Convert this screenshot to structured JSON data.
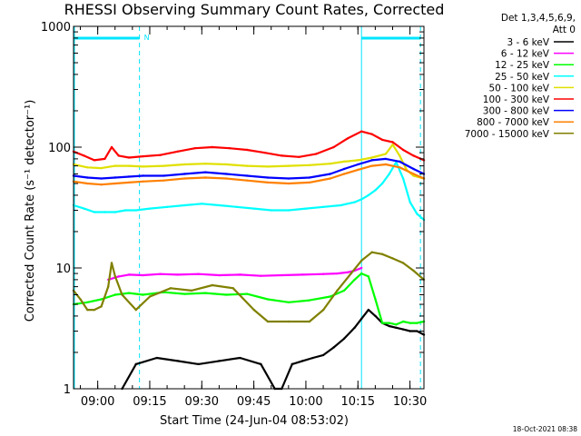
{
  "chart_data": {
    "type": "line",
    "title": "RHESSI Observing Summary Count Rates, Corrected",
    "ylabel": "Corrected Count Rate (s⁻¹ detector⁻¹)",
    "xlabel": "Start Time (24-Jun-04 08:53:02)",
    "yscale": "log",
    "ylim": [
      1,
      1000
    ],
    "xlim_minutes": [
      0,
      101
    ],
    "y_ticks": [
      {
        "value": 1,
        "label": "1"
      },
      {
        "value": 10,
        "label": "10"
      },
      {
        "value": 100,
        "label": "100"
      },
      {
        "value": 1000,
        "label": "1000"
      }
    ],
    "x_ticks": [
      {
        "t": 6.97,
        "label": "09:00"
      },
      {
        "t": 21.97,
        "label": "09:15"
      },
      {
        "t": 36.97,
        "label": "09:30"
      },
      {
        "t": 51.97,
        "label": "09:45"
      },
      {
        "t": 66.97,
        "label": "10:00"
      },
      {
        "t": 81.97,
        "label": "10:15"
      },
      {
        "t": 96.97,
        "label": "10:30"
      }
    ],
    "legend_header": [
      "Det 1,3,4,5,6,9,",
      "Att 0"
    ],
    "legend_placement": "right",
    "night_band": {
      "start": 0,
      "end": 19,
      "label": "N"
    },
    "dashed_markers": [
      19,
      100
    ],
    "solid_markers": [
      0,
      83
    ],
    "series": [
      {
        "name": "3 - 6 keV",
        "color": "#000000",
        "t": [
          14,
          18,
          24,
          30,
          36,
          42,
          48,
          54,
          58,
          60,
          63,
          66,
          69,
          72,
          75,
          78,
          81,
          83,
          85,
          87,
          89,
          91,
          93,
          95,
          97,
          99,
          101
        ],
        "v": [
          1.0,
          1.6,
          1.8,
          1.7,
          1.6,
          1.7,
          1.8,
          1.6,
          1.0,
          1.0,
          1.6,
          1.7,
          1.8,
          1.9,
          2.2,
          2.6,
          3.2,
          3.8,
          4.5,
          4.0,
          3.5,
          3.3,
          3.2,
          3.1,
          3.0,
          3.0,
          2.8
        ]
      },
      {
        "name": "6 - 12 keV",
        "color": "#ff00ff",
        "t": [
          10,
          13,
          16,
          20,
          25,
          30,
          36,
          42,
          48,
          54,
          60,
          66,
          72,
          76,
          79,
          81,
          83
        ],
        "v": [
          8.0,
          8.5,
          8.8,
          8.7,
          8.9,
          8.8,
          8.9,
          8.7,
          8.8,
          8.6,
          8.7,
          8.8,
          8.9,
          9.0,
          9.2,
          9.5,
          10.0
        ]
      },
      {
        "name": "12 - 25 keV",
        "color": "#00ff00",
        "t": [
          0,
          4,
          8,
          12,
          16,
          20,
          26,
          32,
          38,
          44,
          50,
          56,
          62,
          68,
          74,
          78,
          81,
          83,
          85,
          87,
          89,
          91,
          93,
          95,
          97,
          99,
          101
        ],
        "v": [
          5.0,
          5.2,
          5.5,
          6.0,
          6.2,
          6.0,
          6.3,
          6.1,
          6.2,
          6.0,
          6.1,
          5.5,
          5.2,
          5.4,
          5.8,
          6.5,
          8.0,
          9.0,
          8.5,
          5.5,
          3.5,
          3.5,
          3.4,
          3.6,
          3.5,
          3.5,
          3.6
        ]
      },
      {
        "name": "25 - 50 keV",
        "color": "#00ffff",
        "t": [
          0,
          3,
          6,
          9,
          12,
          15,
          18,
          22,
          27,
          32,
          37,
          42,
          47,
          52,
          57,
          62,
          67,
          72,
          77,
          81,
          83,
          85,
          87,
          89,
          91,
          93,
          95,
          97,
          99,
          101
        ],
        "v": [
          33,
          31,
          29,
          29,
          29,
          30,
          30,
          31,
          32,
          33,
          34,
          33,
          32,
          31,
          30,
          30,
          31,
          32,
          33,
          35,
          37,
          40,
          44,
          50,
          60,
          75,
          55,
          35,
          28,
          25
        ]
      },
      {
        "name": "50 - 100 keV",
        "color": "#e0e000",
        "t": [
          0,
          4,
          8,
          12,
          16,
          20,
          26,
          32,
          38,
          44,
          50,
          56,
          62,
          68,
          74,
          78,
          82,
          86,
          90,
          92,
          94,
          96,
          98,
          101
        ],
        "v": [
          72,
          68,
          67,
          70,
          70,
          69,
          70,
          72,
          73,
          72,
          70,
          69,
          70,
          71,
          73,
          76,
          78,
          82,
          88,
          105,
          85,
          65,
          58,
          55
        ]
      },
      {
        "name": "100 - 300 keV",
        "color": "#ff0000",
        "t": [
          0,
          3,
          6,
          9,
          11,
          13,
          16,
          20,
          25,
          30,
          35,
          40,
          45,
          50,
          55,
          60,
          65,
          70,
          75,
          79,
          83,
          86,
          89,
          92,
          95,
          98,
          101
        ],
        "v": [
          92,
          85,
          78,
          80,
          100,
          85,
          82,
          84,
          86,
          92,
          98,
          100,
          98,
          95,
          90,
          85,
          83,
          88,
          100,
          118,
          135,
          128,
          115,
          110,
          95,
          85,
          78
        ]
      },
      {
        "name": "300 - 800 keV",
        "color": "#0000ff",
        "t": [
          0,
          4,
          8,
          12,
          16,
          20,
          26,
          32,
          38,
          44,
          50,
          56,
          62,
          68,
          74,
          78,
          82,
          86,
          90,
          94,
          98,
          101
        ],
        "v": [
          58,
          56,
          55,
          56,
          57,
          58,
          58,
          60,
          62,
          60,
          58,
          56,
          55,
          56,
          60,
          66,
          72,
          78,
          80,
          76,
          66,
          60
        ]
      },
      {
        "name": "800 - 7000 keV",
        "color": "#ff8000",
        "t": [
          0,
          4,
          8,
          12,
          16,
          20,
          26,
          32,
          38,
          44,
          50,
          56,
          62,
          68,
          74,
          78,
          82,
          86,
          90,
          94,
          98,
          101
        ],
        "v": [
          52,
          50,
          49,
          50,
          51,
          52,
          53,
          55,
          56,
          55,
          53,
          51,
          50,
          51,
          55,
          60,
          65,
          70,
          72,
          68,
          60,
          55
        ]
      },
      {
        "name": "7000 - 15000 keV",
        "color": "#808000",
        "t": [
          0,
          2,
          4,
          6,
          8,
          10,
          11,
          12,
          14,
          18,
          22,
          28,
          34,
          40,
          46,
          52,
          56,
          62,
          68,
          72,
          76,
          80,
          83,
          86,
          89,
          92,
          95,
          98,
          101
        ],
        "v": [
          6.5,
          5.5,
          4.5,
          4.5,
          4.8,
          7.0,
          11.0,
          8.5,
          6.0,
          4.5,
          5.8,
          6.8,
          6.5,
          7.2,
          6.8,
          4.5,
          3.6,
          3.6,
          3.6,
          4.5,
          6.5,
          9.0,
          11.5,
          13.5,
          13.0,
          12.0,
          11.0,
          9.5,
          8.0
        ]
      }
    ]
  },
  "timestamp": "18-Oct-2021 08:38"
}
